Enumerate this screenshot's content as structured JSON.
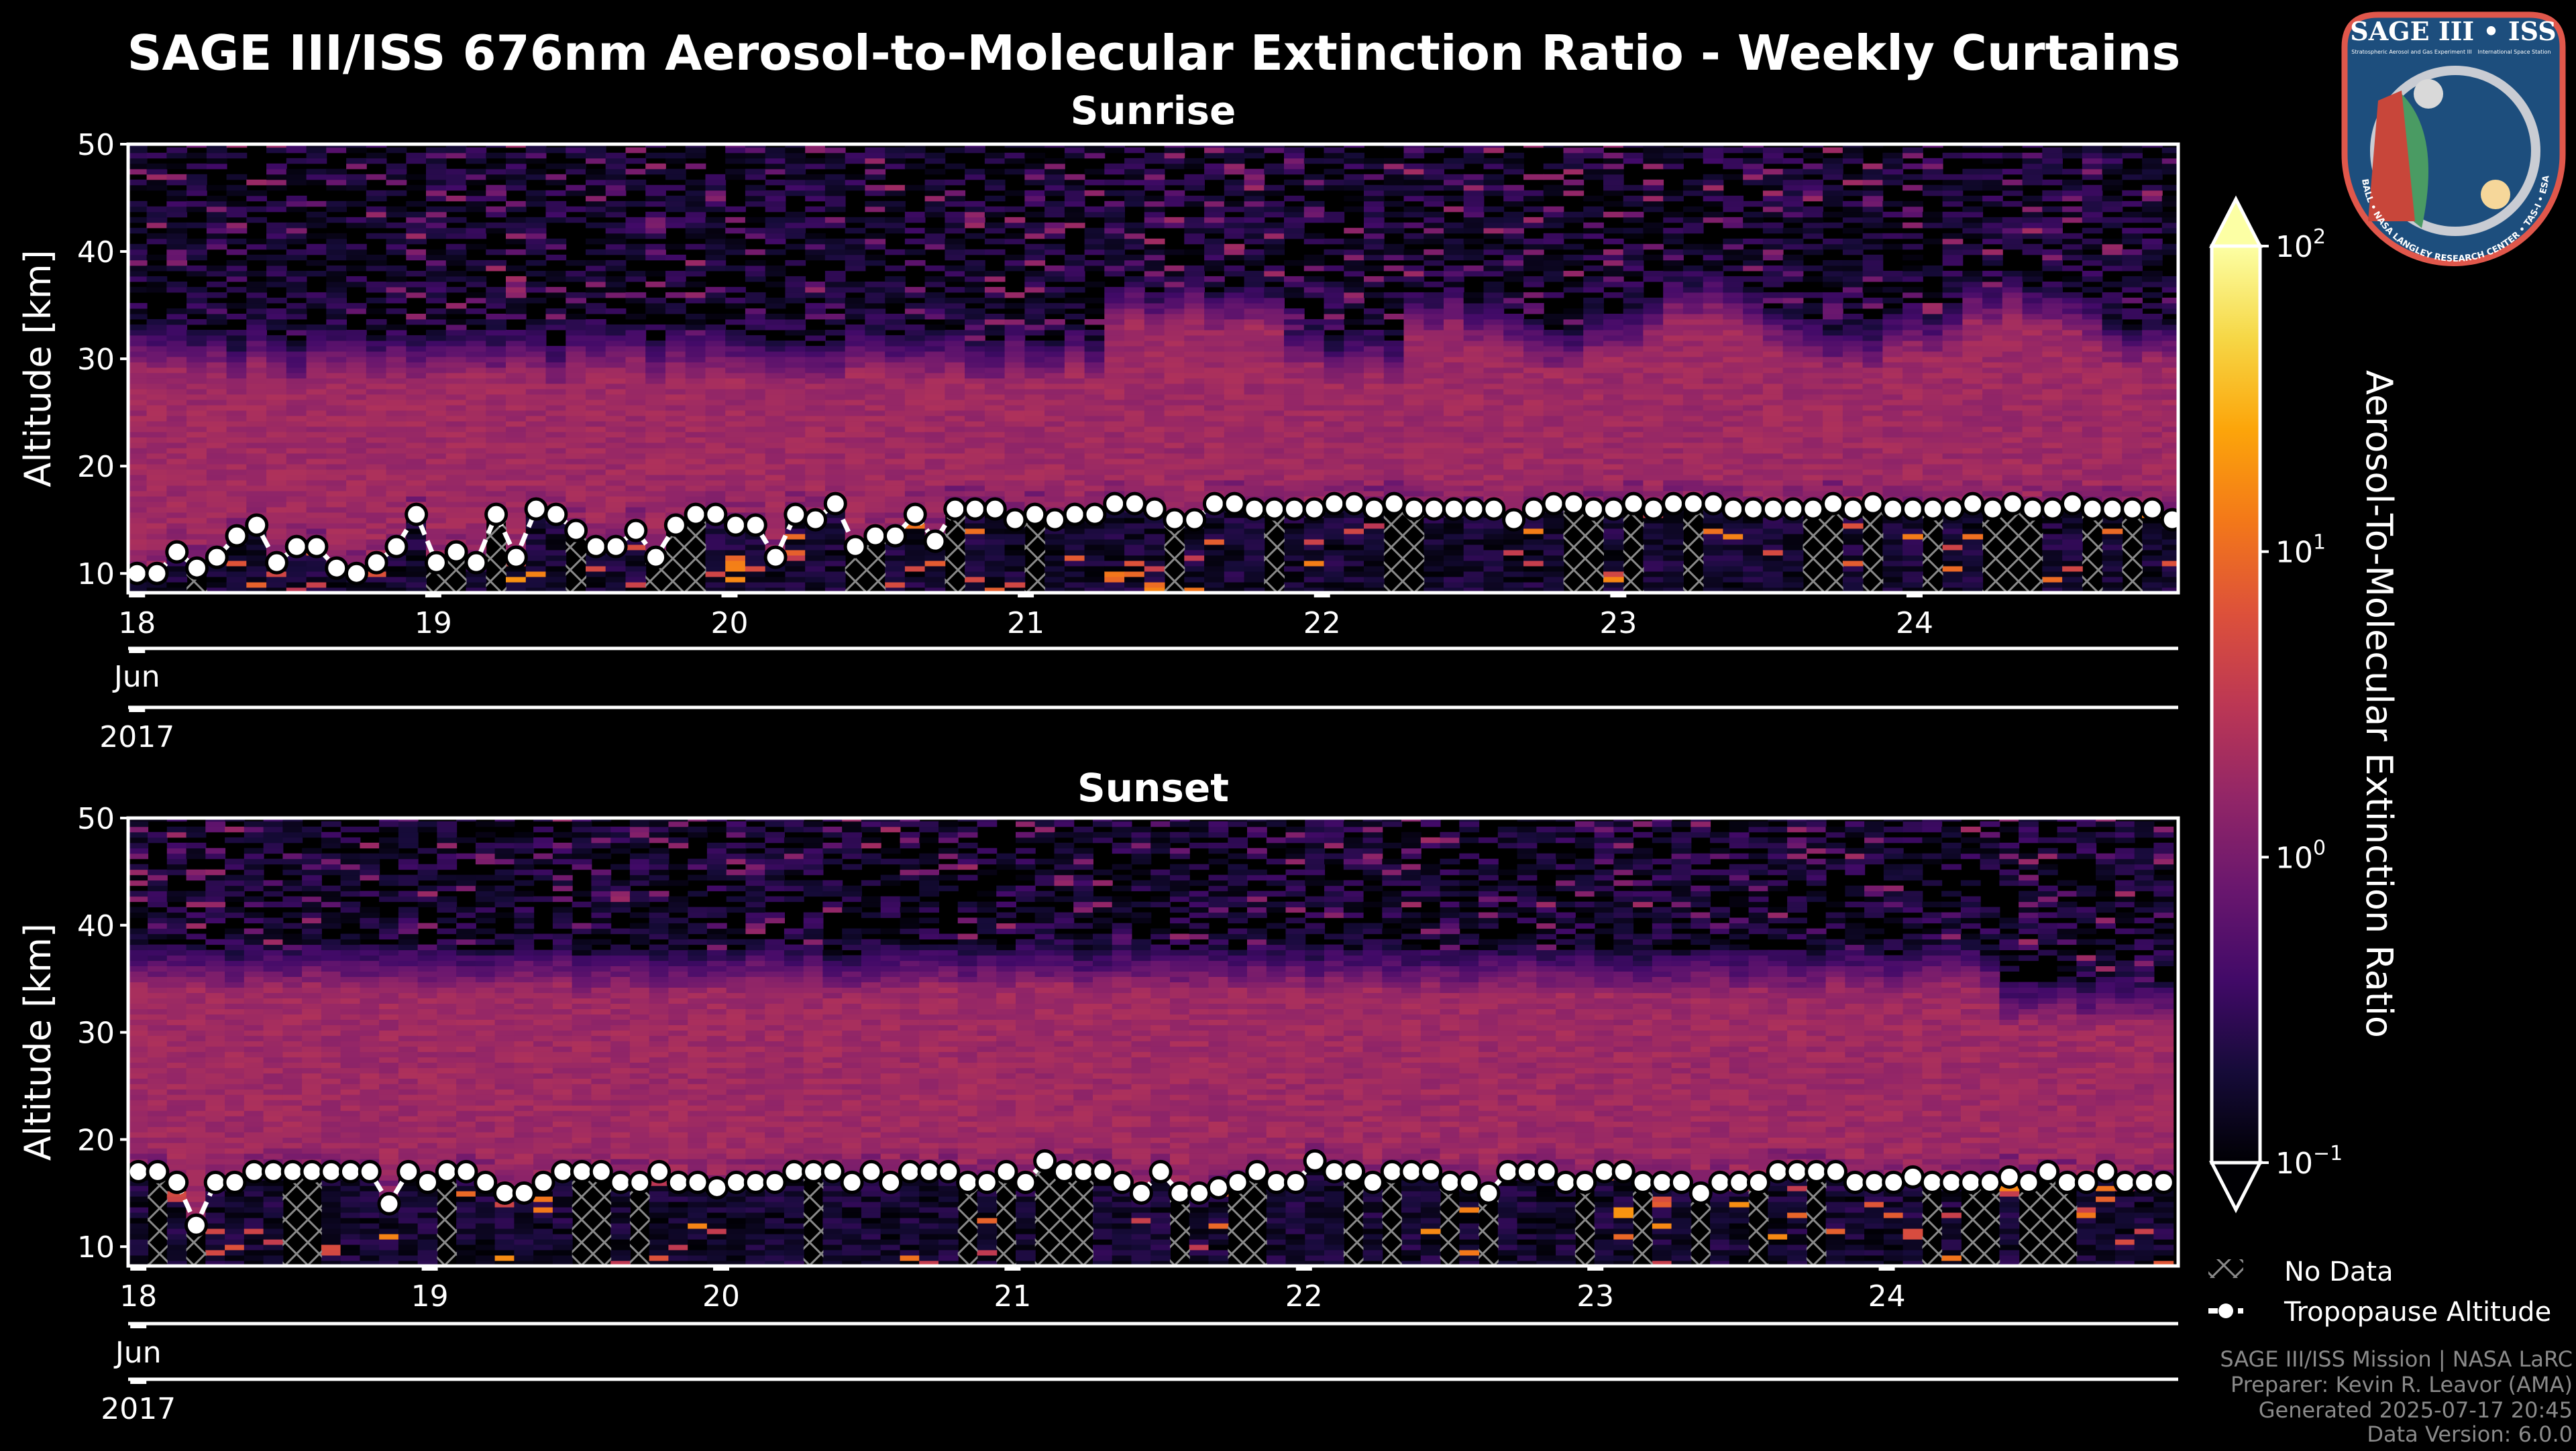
{
  "header": {
    "title": "SAGE III/ISS 676nm Aerosol-to-Molecular Extinction Ratio - Weekly Curtains"
  },
  "logo": {
    "title": "SAGE III • ISS",
    "subtitle_left": "Stratospheric Aerosol and Gas Experiment III",
    "subtitle_right": "International Space Station",
    "ring": "BALL • NASA LANGLEY RESEARCH CENTER • TAS-I • ESA"
  },
  "chart_data": [
    {
      "type": "heatmap",
      "title": "Sunrise",
      "ylabel": "Altitude [km]",
      "ylim": [
        8.2,
        50
      ],
      "yticks": [
        "10",
        "20",
        "30",
        "40",
        "50"
      ],
      "xlim": [
        17.97,
        24.89
      ],
      "xticks": [
        "18",
        "19",
        "20",
        "21",
        "22",
        "23",
        "24"
      ],
      "month_label": "Jun",
      "year_label": "2017",
      "tropopause_altitude_km": [
        10,
        10,
        12,
        10.5,
        11.5,
        13.5,
        14.5,
        11,
        12.5,
        12.5,
        10.5,
        10,
        11,
        12.5,
        15.5,
        11,
        12,
        11,
        15.5,
        11.5,
        16,
        15.5,
        14,
        12.5,
        12.5,
        14,
        11.5,
        14.5,
        15.5,
        15.5,
        14.5,
        14.5,
        11.5,
        15.5,
        15,
        16.5,
        12.5,
        13.5,
        13.5,
        15.5,
        13,
        16,
        16,
        16,
        15,
        15.5,
        15,
        15.5,
        15.5,
        16.5,
        16.5,
        16,
        15,
        15,
        16.5,
        16.5,
        16,
        16,
        16,
        16,
        16.5,
        16.5,
        16,
        16.5,
        16,
        16,
        16,
        16,
        16,
        15,
        16,
        16.5,
        16.5,
        16,
        16,
        16.5,
        16,
        16.5,
        16.5,
        16.5,
        16,
        16,
        16,
        16,
        16,
        16.5,
        16,
        16.5,
        16,
        16,
        16,
        16,
        16.5,
        16,
        16.5,
        16,
        16,
        16.5,
        16,
        16,
        16,
        16,
        15
      ],
      "profile_time_range": [
        18.0,
        24.87
      ]
    },
    {
      "type": "heatmap",
      "title": "Sunset",
      "ylabel": "Altitude [km]",
      "ylim": [
        8.2,
        50
      ],
      "yticks": [
        "10",
        "20",
        "30",
        "40",
        "50"
      ],
      "xlim": [
        17.965,
        25.0
      ],
      "xticks": [
        "18",
        "19",
        "20",
        "21",
        "22",
        "23",
        "24"
      ],
      "month_label": "Jun",
      "year_label": "2017",
      "tropopause_altitude_km": [
        17,
        17,
        16,
        12,
        16,
        16,
        17,
        17,
        17,
        17,
        17,
        17,
        17,
        14,
        17,
        16,
        17,
        17,
        16,
        15,
        15,
        16,
        17,
        17,
        17,
        16,
        16,
        17,
        16,
        16,
        15.5,
        16,
        16,
        16,
        17,
        17,
        17,
        16,
        17,
        16,
        17,
        17,
        17,
        16,
        16,
        17,
        16,
        18,
        17,
        17,
        17,
        16,
        15,
        17,
        15,
        15,
        15.5,
        16,
        17,
        16,
        16,
        18,
        17,
        17,
        16,
        17,
        17,
        17,
        16,
        16,
        15,
        17,
        17,
        17,
        16,
        16,
        17,
        17,
        16,
        16,
        16,
        15,
        16,
        16,
        16,
        17,
        17,
        17,
        17,
        16,
        16,
        16,
        16.5,
        16,
        16,
        16,
        16,
        16.5,
        16,
        17,
        16,
        16,
        17,
        16,
        16,
        16
      ],
      "profile_time_range": [
        18.0,
        24.95
      ]
    }
  ],
  "colorbar": {
    "label": "Aerosol-To-Molecular Extinction Ratio",
    "scale": "log",
    "range": [
      0.1,
      100
    ],
    "ticks": [
      {
        "base": "10",
        "exp": "2"
      },
      {
        "base": "10",
        "exp": "1"
      },
      {
        "base": "10",
        "exp": "0"
      },
      {
        "base": "10",
        "exp": "−1"
      }
    ],
    "colormap": "inferno",
    "stops": [
      "#000004",
      "#160b39",
      "#420a68",
      "#6a176e",
      "#932667",
      "#bc3754",
      "#dd513a",
      "#f37819",
      "#fca50a",
      "#f6d746",
      "#fcffa4"
    ]
  },
  "legend": {
    "no_data": "No Data",
    "tropopause": "Tropopause Altitude"
  },
  "footer": {
    "line1": "SAGE III/ISS Mission | NASA LaRC",
    "line2": "Preparer: Kevin R. Leavor (AMA)",
    "line3": "Generated 2025-07-17 20:45",
    "line4": "Data Version: 6.0.0"
  }
}
